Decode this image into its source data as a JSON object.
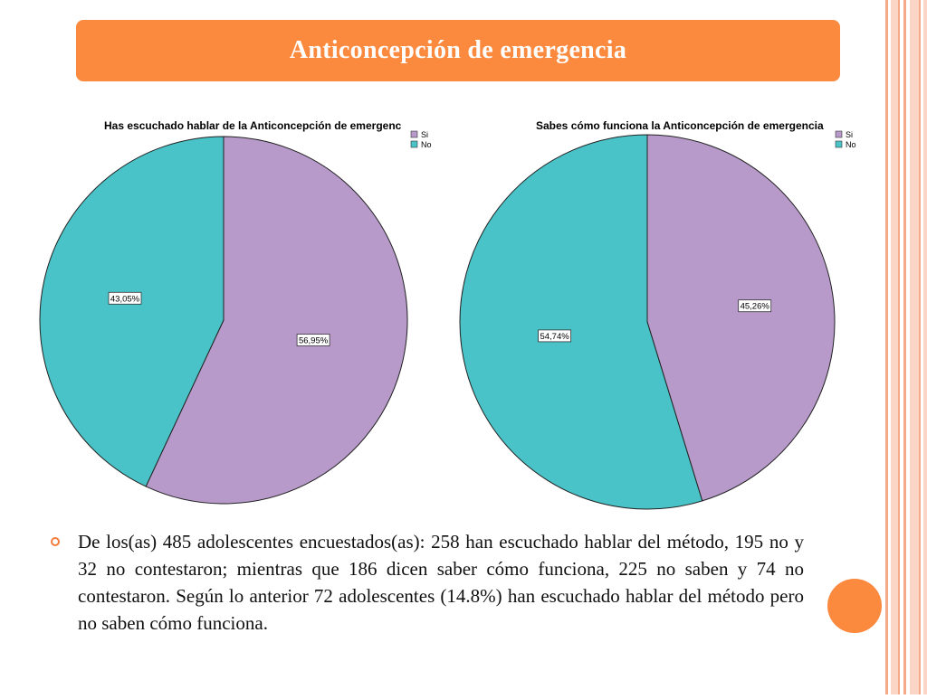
{
  "slide": {
    "title": "Anticoncepción de emergencia",
    "body": "De los(as) 485 adolescentes encuestados(as): 258 han escuchado hablar del método, 195 no y 32 no contestaron; mientras que 186 dicen saber cómo funciona, 225 no saben y 74 no contestaron. Según lo anterior 72 adolescentes (14.8%) han escuchado hablar del método pero no saben cómo funciona."
  },
  "theme": {
    "accent": "#fb8a3f",
    "stripe_light": "#fbd6c6",
    "stripe_dark": "#f6a987"
  },
  "chart_data": [
    {
      "type": "pie",
      "title": "Has escuchado hablar de la Anticoncepción de emergenc",
      "legend_position": "top-right",
      "slices": [
        {
          "label": "Si",
          "value": 56.95,
          "display": "56,95%",
          "color": "#b79aca"
        },
        {
          "label": "No",
          "value": 43.05,
          "display": "43,05%",
          "color": "#49c3c7"
        }
      ]
    },
    {
      "type": "pie",
      "title": "Sabes cómo funciona la Anticoncepción de emergencia",
      "legend_position": "top-right",
      "slices": [
        {
          "label": "Si",
          "value": 45.26,
          "display": "45,26%",
          "color": "#b79aca"
        },
        {
          "label": "No",
          "value": 54.74,
          "display": "54,74%",
          "color": "#49c3c7"
        }
      ]
    }
  ]
}
